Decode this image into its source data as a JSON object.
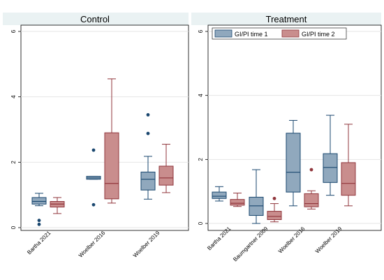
{
  "chart_data": [
    {
      "type": "box",
      "title": "Control",
      "ylim": [
        0,
        6
      ],
      "yticks": [
        "0",
        "2",
        "4",
        "6"
      ],
      "categories": [
        "Bartha 2021",
        "Woelber 2016",
        "Woelber 2019"
      ],
      "series": [
        {
          "name": "GI/PI time 1",
          "boxes": [
            {
              "min": 0.67,
              "q1": 0.72,
              "median": 0.8,
              "q3": 0.92,
              "max": 1.05,
              "outliers": [
                0.22,
                0.1
              ]
            },
            {
              "min": 1.48,
              "q1": 1.48,
              "median": 1.52,
              "q3": 1.57,
              "max": 1.57,
              "outliers": [
                2.37,
                0.7
              ]
            },
            {
              "min": 0.87,
              "q1": 1.15,
              "median": 1.48,
              "q3": 1.7,
              "max": 2.18,
              "outliers": [
                3.45,
                2.88
              ]
            }
          ]
        },
        {
          "name": "GI/PI time 2",
          "boxes": [
            {
              "min": 0.43,
              "q1": 0.63,
              "median": 0.72,
              "q3": 0.8,
              "max": 0.92,
              "outliers": []
            },
            {
              "min": 0.75,
              "q1": 0.88,
              "median": 1.35,
              "q3": 2.9,
              "max": 4.55,
              "outliers": []
            },
            {
              "min": 1.07,
              "q1": 1.3,
              "median": 1.52,
              "q3": 1.88,
              "max": 2.55,
              "outliers": []
            }
          ]
        }
      ]
    },
    {
      "type": "box",
      "title": "Treatment",
      "ylim": [
        0,
        6
      ],
      "yticks": [
        "0",
        "2",
        "4",
        "6"
      ],
      "categories": [
        "Bartha 2021",
        "Baumgartner 2009",
        "Woelber 2016",
        "Woelber 2019"
      ],
      "legend": {
        "position": "top",
        "entries": [
          "GI/PI time 1",
          "GI/PI time 2"
        ]
      },
      "series": [
        {
          "name": "GI/PI time 1",
          "boxes": [
            {
              "min": 0.7,
              "q1": 0.78,
              "median": 0.85,
              "q3": 0.98,
              "max": 1.15,
              "outliers": []
            },
            {
              "min": 0.0,
              "q1": 0.25,
              "median": 0.55,
              "q3": 0.82,
              "max": 1.68,
              "outliers": []
            },
            {
              "min": 0.55,
              "q1": 0.98,
              "median": 1.6,
              "q3": 2.82,
              "max": 3.22,
              "outliers": []
            },
            {
              "min": 0.88,
              "q1": 1.28,
              "median": 1.75,
              "q3": 2.18,
              "max": 3.38,
              "outliers": []
            }
          ]
        },
        {
          "name": "GI/PI time 2",
          "boxes": [
            {
              "min": 0.53,
              "q1": 0.57,
              "median": 0.63,
              "q3": 0.75,
              "max": 0.95,
              "outliers": []
            },
            {
              "min": 0.05,
              "q1": 0.12,
              "median": 0.22,
              "q3": 0.38,
              "max": 0.62,
              "outliers": [
                0.78
              ]
            },
            {
              "min": 0.45,
              "q1": 0.52,
              "median": 0.62,
              "q3": 0.93,
              "max": 1.02,
              "outliers": [
                1.68
              ]
            },
            {
              "min": 0.55,
              "q1": 0.88,
              "median": 1.25,
              "q3": 1.9,
              "max": 3.1,
              "outliers": []
            }
          ]
        }
      ]
    }
  ],
  "colors": {
    "time1_fill": "#90a8bd",
    "time1_stroke": "#1a476f",
    "time2_fill": "#c98d8d",
    "time2_stroke": "#90353b",
    "grid": "#e6e6e6",
    "panel_bg": "#ffffff",
    "title_bg": "#eaf2f3"
  }
}
